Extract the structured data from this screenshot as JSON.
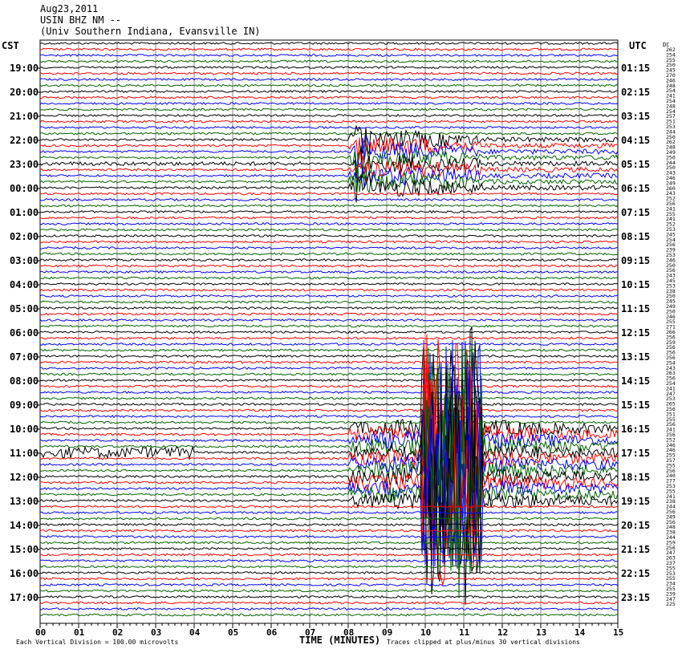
{
  "header": {
    "date": "Aug23,2011",
    "station": "USIN BHZ NM --",
    "location": "(Univ Southern Indiana, Evansville IN)"
  },
  "chart_data": {
    "type": "line",
    "title": "",
    "left_axis_title": "CST",
    "right_axis_title": "UTC",
    "xlabel": "TIME (MINUTES)",
    "xlim": [
      0,
      15
    ],
    "x_ticks": [
      "00",
      "01",
      "02",
      "03",
      "04",
      "05",
      "06",
      "07",
      "08",
      "09",
      "10",
      "11",
      "12",
      "13",
      "14",
      "15"
    ],
    "left_hour_labels": [
      "19:00",
      "20:00",
      "21:00",
      "22:00",
      "23:00",
      "00:00",
      "01:00",
      "02:00",
      "03:00",
      "04:00",
      "05:00",
      "06:00",
      "07:00",
      "08:00",
      "09:00",
      "10:00",
      "11:00",
      "12:00",
      "13:00",
      "14:00",
      "15:00",
      "16:00",
      "17:00"
    ],
    "right_hour_labels": [
      "01:15",
      "02:15",
      "03:15",
      "04:15",
      "05:15",
      "06:15",
      "07:15",
      "08:15",
      "09:15",
      "10:15",
      "11:15",
      "12:15",
      "13:15",
      "14:15",
      "15:15",
      "16:15",
      "17:15",
      "18:15",
      "19:15",
      "20:15",
      "21:15",
      "22:15",
      "23:15"
    ],
    "trace_colors": [
      "#000000",
      "#ff0000",
      "#0000ff",
      "#006600"
    ],
    "dc_label": "DC",
    "dc_offsets": [
      262,
      254,
      255,
      250,
      245,
      270,
      246,
      248,
      254,
      241,
      254,
      248,
      254,
      257,
      251,
      253,
      244,
      250,
      262,
      248,
      249,
      250,
      244,
      250,
      243,
      246,
      249,
      260,
      243,
      252,
      256,
      241,
      255,
      241,
      252,
      253,
      245,
      254,
      256,
      239,
      253,
      246,
      250,
      256,
      243,
      245,
      253,
      238,
      250,
      245,
      249,
      250,
      246,
      255,
      271,
      266,
      256,
      259,
      256,
      256,
      256,
      254,
      243,
      263,
      256,
      254,
      241,
      247,
      253,
      265,
      256,
      251,
      255,
      256,
      241,
      256,
      252,
      246,
      246,
      255,
      257,
      255,
      256,
      240,
      277,
      253,
      255,
      241,
      238,
      244,
      256,
      249,
      256,
      248,
      238,
      244,
      259,
      256,
      247,
      263,
      237,
      255,
      253,
      255,
      234,
      255,
      239,
      247,
      225
    ],
    "footer_left": "Each Vertical Division =  100.00 microvolts",
    "footer_right": "Traces clipped at plus/minus 30 vertical divisions",
    "events": [
      {
        "traces_around": "23:00-01:00 CST",
        "onset_minute": 8.2
      },
      {
        "traces_around": "11:00-13:00 CST",
        "onset_minute": 8.0
      }
    ]
  }
}
